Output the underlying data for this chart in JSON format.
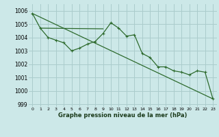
{
  "background_color": "#cce8e8",
  "grid_color": "#aacccc",
  "line_color": "#2d6a2d",
  "title": "Graphe pression niveau de la mer (hPa)",
  "xlim": [
    -0.5,
    23.5
  ],
  "ylim": [
    998.8,
    1006.5
  ],
  "yticks": [
    999,
    1000,
    1001,
    1002,
    1003,
    1004,
    1005,
    1006
  ],
  "xticks": [
    0,
    1,
    2,
    3,
    4,
    5,
    6,
    7,
    8,
    9,
    10,
    11,
    12,
    13,
    14,
    15,
    16,
    17,
    18,
    19,
    20,
    21,
    22,
    23
  ],
  "xtick_labels": [
    "0",
    "1",
    "2",
    "3",
    "4",
    "5",
    "6",
    "7",
    "8",
    "9",
    "10",
    "11",
    "12",
    "13",
    "14",
    "15",
    "16",
    "17",
    "18",
    "19",
    "20",
    "21",
    "22",
    "23"
  ],
  "series1_x": [
    0,
    1,
    2,
    3,
    4,
    5,
    6,
    7,
    8,
    9,
    10,
    11,
    12,
    13,
    14,
    15,
    16,
    17,
    18,
    19,
    20,
    21,
    22,
    23
  ],
  "series1_y": [
    1005.8,
    1004.7,
    1004.0,
    1003.8,
    1003.6,
    1003.0,
    1003.2,
    1003.5,
    1003.7,
    1004.3,
    1005.1,
    1004.7,
    1004.1,
    1004.2,
    1002.8,
    1002.5,
    1001.8,
    1001.8,
    1001.5,
    1001.4,
    1001.2,
    1001.5,
    1001.4,
    999.4
  ],
  "series2_x": [
    1,
    9
  ],
  "series2_y": [
    1004.7,
    1004.65
  ],
  "series3_x": [
    0,
    23
  ],
  "series3_y": [
    1005.8,
    999.4
  ]
}
